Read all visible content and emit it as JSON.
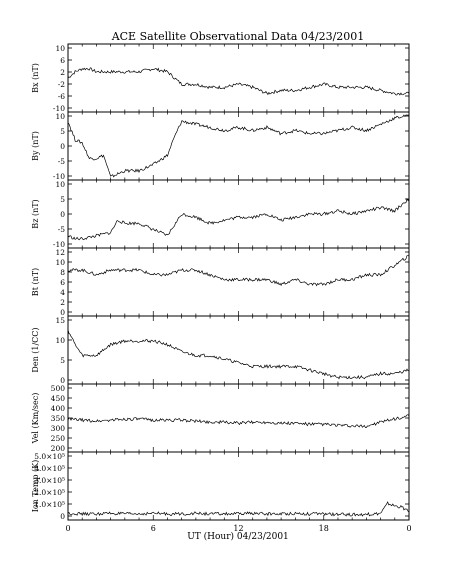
{
  "title": "ACE Satellite Observational Data   04/23/2001",
  "xlabel": "UT (Hour)  04/23/2001",
  "x_ticks": [
    "0",
    "6",
    "12",
    "18",
    "0"
  ],
  "chart_data": [
    {
      "type": "line",
      "ylabel": "Bx (nT)",
      "yticks": [
        "10",
        "6",
        "2",
        "-2",
        "-6",
        "-10"
      ],
      "ylim": [
        -10,
        10
      ],
      "x_hours": [
        0,
        0.5,
        1,
        1.5,
        2,
        3,
        4,
        5,
        6,
        7,
        8,
        9,
        10,
        11,
        12,
        13,
        14,
        15,
        16,
        17,
        18,
        19,
        20,
        21,
        22,
        23,
        24
      ],
      "values": [
        0,
        2,
        3,
        3,
        2,
        2,
        2,
        2,
        3,
        2,
        -2,
        -2,
        -3,
        -3,
        -2,
        -3,
        -5,
        -4,
        -4,
        -3,
        -2,
        -3,
        -3,
        -3,
        -4,
        -5,
        -5
      ]
    },
    {
      "type": "line",
      "ylabel": "By (nT)",
      "yticks": [
        "10",
        "5",
        "0",
        "-5",
        "-10"
      ],
      "ylim": [
        -10,
        10
      ],
      "x_hours": [
        0,
        0.5,
        1,
        1.5,
        2,
        2.5,
        3,
        3.5,
        4,
        5,
        6,
        7,
        7.5,
        8,
        9,
        10,
        11,
        12,
        13,
        14,
        15,
        16,
        17,
        18,
        19,
        20,
        21,
        22,
        23,
        24
      ],
      "values": [
        8,
        2,
        1,
        -4,
        -4,
        -3,
        -10,
        -9,
        -8,
        -8,
        -6,
        -3,
        3,
        8,
        7,
        6,
        5,
        6,
        5,
        6,
        4,
        5,
        4,
        4,
        5,
        6,
        5,
        7,
        9,
        10
      ]
    },
    {
      "type": "line",
      "ylabel": "Bz (nT)",
      "yticks": [
        "10",
        "5",
        "0",
        "-5",
        "-10"
      ],
      "ylim": [
        -10,
        10
      ],
      "x_hours": [
        0,
        0.5,
        1,
        2,
        3,
        3.5,
        4,
        5,
        6,
        7,
        8,
        9,
        10,
        11,
        12,
        13,
        14,
        15,
        16,
        17,
        18,
        19,
        20,
        21,
        22,
        23,
        24
      ],
      "values": [
        -7,
        -8,
        -8,
        -7,
        -6,
        -2,
        -3,
        -3,
        -5,
        -7,
        0,
        -1,
        -3,
        -2,
        -1,
        -1,
        0,
        -2,
        -1,
        0,
        0,
        1,
        0,
        1,
        2,
        1,
        5
      ]
    },
    {
      "type": "line",
      "ylabel": "Bt (nT)",
      "yticks": [
        "12",
        "10",
        "8",
        "6",
        "4",
        "2",
        "0"
      ],
      "ylim": [
        0,
        13
      ],
      "x_hours": [
        0,
        1,
        2,
        3,
        4,
        5,
        6,
        7,
        8,
        9,
        10,
        11,
        12,
        13,
        14,
        15,
        16,
        17,
        18,
        19,
        20,
        21,
        22,
        23,
        24
      ],
      "values": [
        9,
        9,
        8,
        9,
        9,
        9,
        8,
        8,
        9,
        9,
        8,
        7,
        7,
        7,
        7,
        6,
        7,
        6,
        6,
        7,
        7,
        8,
        8,
        10,
        12
      ]
    },
    {
      "type": "line",
      "ylabel": "Den (1/CC)",
      "yticks": [
        "15",
        "10",
        "5",
        "0"
      ],
      "ylim": [
        0,
        17
      ],
      "x_hours": [
        0,
        0.5,
        1,
        2,
        3,
        4,
        5,
        6,
        7,
        8,
        9,
        10,
        11,
        12,
        13,
        14,
        15,
        16,
        17,
        18,
        19,
        20,
        21,
        22,
        23,
        24
      ],
      "values": [
        14,
        10,
        7,
        7,
        10,
        11,
        11,
        11,
        10,
        8,
        7,
        7,
        6,
        5,
        4,
        4,
        4,
        4,
        3,
        2,
        1,
        1,
        1,
        2,
        2,
        3
      ]
    },
    {
      "type": "line",
      "ylabel": "Vel (Km/sec)",
      "yticks": [
        "500",
        "450",
        "400",
        "350",
        "300",
        "250",
        "200"
      ],
      "ylim": [
        200,
        500
      ],
      "x_hours": [
        0,
        1,
        2,
        3,
        4,
        5,
        6,
        7,
        8,
        9,
        10,
        11,
        12,
        13,
        14,
        15,
        16,
        17,
        18,
        19,
        20,
        21,
        22,
        23,
        24
      ],
      "values": [
        345,
        340,
        335,
        340,
        345,
        345,
        340,
        340,
        340,
        335,
        330,
        330,
        325,
        330,
        330,
        325,
        325,
        320,
        320,
        315,
        310,
        310,
        330,
        345,
        360
      ]
    },
    {
      "type": "line",
      "ylabel": "Ion Temp (K)",
      "yticks": [
        "5.0×10⁵",
        "4.0×10⁵",
        "3.0×10⁵",
        "2.0×10⁵",
        "1.0×10⁵",
        "0"
      ],
      "ylim": [
        0,
        500000
      ],
      "x_hours": [
        0,
        1,
        2,
        3,
        4,
        5,
        6,
        7,
        8,
        9,
        10,
        11,
        12,
        13,
        14,
        15,
        16,
        17,
        18,
        19,
        20,
        21,
        22,
        22.5,
        23,
        23.5,
        24
      ],
      "values": [
        30000,
        25000,
        25000,
        30000,
        25000,
        25000,
        30000,
        25000,
        25000,
        30000,
        25000,
        25000,
        25000,
        30000,
        25000,
        25000,
        30000,
        25000,
        25000,
        20000,
        20000,
        20000,
        30000,
        110000,
        90000,
        80000,
        40000
      ]
    }
  ]
}
